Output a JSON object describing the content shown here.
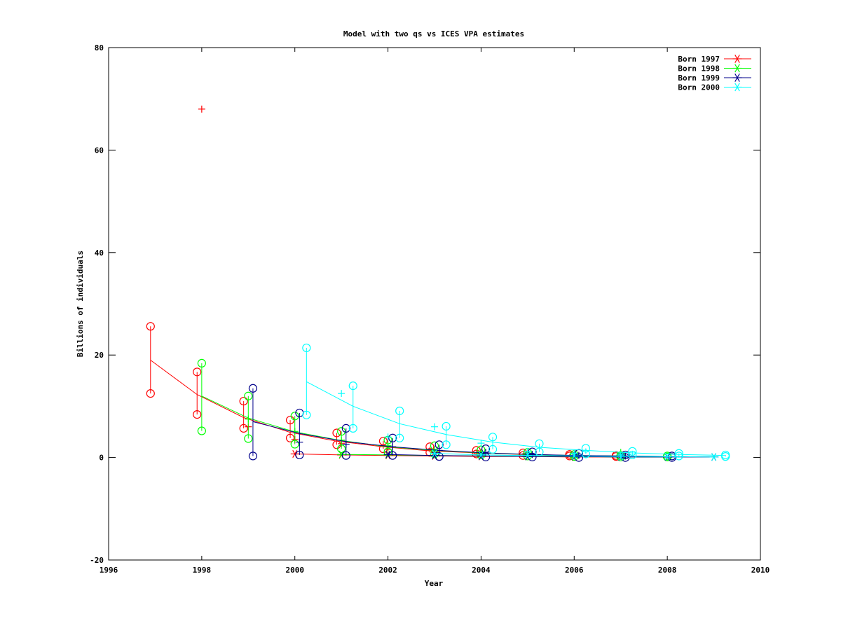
{
  "chart_data": {
    "type": "line",
    "title": "Model with two qs vs ICES VPA estimates",
    "xlabel": "Year",
    "ylabel": "Billions of individuals",
    "xlim": [
      1996,
      2010
    ],
    "ylim": [
      -20,
      80
    ],
    "xticks": [
      1996,
      1998,
      2000,
      2002,
      2004,
      2006,
      2008,
      2010
    ],
    "yticks": [
      -20,
      0,
      20,
      40,
      60,
      80
    ],
    "grid": false,
    "legend_position": "top-right",
    "series": [
      {
        "name": "Born 1997",
        "color": "#ff0000",
        "model_line": [
          [
            1996.9,
            19.0
          ],
          [
            1997.9,
            12.3
          ],
          [
            1998.9,
            7.8
          ],
          [
            1999.9,
            4.9
          ],
          [
            2000.9,
            3.2
          ],
          [
            2001.9,
            2.1
          ],
          [
            2002.9,
            1.3
          ],
          [
            2003.9,
            0.9
          ],
          [
            2004.9,
            0.6
          ],
          [
            2005.9,
            0.4
          ],
          [
            2006.9,
            0.3
          ]
        ],
        "vpa_points": [
          [
            1998.0,
            68.0
          ],
          [
            1999.0,
            6.0
          ],
          [
            2000.0,
            3.5
          ],
          [
            2001.0,
            2.7
          ],
          [
            2002.0,
            1.6
          ],
          [
            2003.0,
            1.0
          ],
          [
            2004.0,
            0.7
          ],
          [
            2005.0,
            0.5
          ],
          [
            2006.0,
            0.3
          ]
        ],
        "interval_bars": [
          [
            1996.9,
            12.5,
            25.6
          ],
          [
            1997.9,
            8.4,
            16.7
          ],
          [
            1998.9,
            5.7,
            11.0
          ],
          [
            1999.9,
            3.8,
            7.3
          ],
          [
            2000.9,
            2.5,
            4.8
          ],
          [
            2001.9,
            1.7,
            3.2
          ],
          [
            2002.9,
            1.0,
            2.1
          ],
          [
            2003.9,
            0.7,
            1.4
          ],
          [
            2004.9,
            0.4,
            0.9
          ],
          [
            2005.9,
            0.3,
            0.6
          ],
          [
            2006.9,
            0.2,
            0.4
          ]
        ],
        "marker_line": [
          [
            2000.0,
            0.7
          ],
          [
            2001.0,
            0.5
          ],
          [
            2002.0,
            0.4
          ],
          [
            2003.0,
            0.3
          ],
          [
            2004.0,
            0.2
          ],
          [
            2005.0,
            0.2
          ],
          [
            2006.0,
            0.1
          ],
          [
            2007.0,
            0.1
          ]
        ]
      },
      {
        "name": "Born 1998",
        "color": "#00ff00",
        "model_line": [
          [
            1998.0,
            12.0
          ],
          [
            1999.0,
            7.7
          ],
          [
            2000.0,
            5.0
          ],
          [
            2001.0,
            3.3
          ],
          [
            2002.0,
            2.1
          ],
          [
            2003.0,
            1.4
          ],
          [
            2004.0,
            0.9
          ],
          [
            2005.0,
            0.6
          ],
          [
            2006.0,
            0.4
          ],
          [
            2007.0,
            0.3
          ],
          [
            2008.0,
            0.2
          ]
        ],
        "vpa_points": [
          [
            1999.0,
            7.5
          ],
          [
            2000.0,
            5.1
          ],
          [
            2001.0,
            3.4
          ],
          [
            2002.0,
            2.3
          ],
          [
            2003.0,
            1.5
          ],
          [
            2004.0,
            1.0
          ],
          [
            2005.0,
            0.6
          ],
          [
            2006.0,
            0.4
          ],
          [
            2007.0,
            1.0
          ]
        ],
        "interval_bars": [
          [
            1998.0,
            5.2,
            18.4
          ],
          [
            1999.0,
            3.7,
            12.0
          ],
          [
            2000.0,
            2.6,
            8.1
          ],
          [
            2001.0,
            1.7,
            5.1
          ],
          [
            2002.0,
            1.1,
            3.4
          ],
          [
            2003.0,
            0.7,
            2.3
          ],
          [
            2004.0,
            0.5,
            1.5
          ],
          [
            2005.0,
            0.3,
            1.0
          ],
          [
            2006.0,
            0.2,
            0.6
          ],
          [
            2007.0,
            0.1,
            0.4
          ],
          [
            2008.0,
            0.1,
            0.3
          ]
        ],
        "marker_line": [
          [
            2001.0,
            0.6
          ],
          [
            2002.0,
            0.5
          ],
          [
            2003.0,
            0.4
          ],
          [
            2004.0,
            0.3
          ],
          [
            2005.0,
            0.2
          ],
          [
            2006.0,
            0.2
          ],
          [
            2007.0,
            0.1
          ],
          [
            2008.0,
            0.1
          ]
        ]
      },
      {
        "name": "Born 1999",
        "color": "#00008b",
        "model_line": [
          [
            1999.1,
            7.0
          ],
          [
            2000.1,
            4.7
          ],
          [
            2001.1,
            3.1
          ],
          [
            2002.1,
            2.1
          ],
          [
            2003.1,
            1.4
          ],
          [
            2004.1,
            0.9
          ],
          [
            2005.1,
            0.6
          ],
          [
            2006.1,
            0.4
          ],
          [
            2007.1,
            0.3
          ],
          [
            2008.1,
            0.2
          ],
          [
            2009.1,
            0.1
          ]
        ],
        "vpa_points": [
          [
            2000.1,
            3.0
          ],
          [
            2001.1,
            2.6
          ],
          [
            2002.1,
            2.1
          ],
          [
            2003.1,
            1.4
          ],
          [
            2004.1,
            0.9
          ],
          [
            2005.1,
            0.6
          ],
          [
            2006.1,
            0.4
          ],
          [
            2007.1,
            0.3
          ]
        ],
        "interval_bars": [
          [
            1999.1,
            0.3,
            13.5
          ],
          [
            2000.1,
            0.5,
            8.7
          ],
          [
            2001.1,
            0.4,
            5.7
          ],
          [
            2002.1,
            0.4,
            3.8
          ],
          [
            2003.1,
            0.2,
            2.5
          ],
          [
            2004.1,
            0.1,
            1.7
          ],
          [
            2005.1,
            0.1,
            1.1
          ],
          [
            2006.1,
            0.0,
            0.8
          ],
          [
            2007.1,
            0.0,
            0.5
          ],
          [
            2008.1,
            0.0,
            0.3
          ]
        ],
        "marker_line": [
          [
            2002.0,
            0.6
          ],
          [
            2003.0,
            0.4
          ],
          [
            2004.0,
            0.3
          ],
          [
            2005.0,
            0.2
          ],
          [
            2006.0,
            0.2
          ],
          [
            2007.0,
            0.1
          ],
          [
            2008.0,
            0.1
          ],
          [
            2009.0,
            0.1
          ]
        ]
      },
      {
        "name": "Born 2000",
        "color": "#00ffff",
        "model_line": [
          [
            2000.25,
            14.8
          ],
          [
            2001.25,
            10.0
          ],
          [
            2002.25,
            6.6
          ],
          [
            2003.25,
            4.5
          ],
          [
            2004.25,
            3.0
          ],
          [
            2005.25,
            2.0
          ],
          [
            2006.25,
            1.4
          ],
          [
            2007.25,
            0.9
          ],
          [
            2008.25,
            0.6
          ],
          [
            2009.25,
            0.4
          ]
        ],
        "vpa_points": [
          [
            2001.0,
            12.5
          ],
          [
            2002.0,
            4.0
          ],
          [
            2003.0,
            6.0
          ],
          [
            2004.0,
            2.8
          ],
          [
            2005.0,
            1.2
          ],
          [
            2006.0,
            0.8
          ],
          [
            2007.0,
            0.5
          ]
        ],
        "interval_bars": [
          [
            2000.25,
            8.3,
            21.4
          ],
          [
            2001.25,
            5.7,
            14.0
          ],
          [
            2002.25,
            3.8,
            9.1
          ],
          [
            2003.25,
            2.5,
            6.1
          ],
          [
            2004.25,
            1.6,
            4.0
          ],
          [
            2005.25,
            1.1,
            2.7
          ],
          [
            2006.25,
            0.7,
            1.8
          ],
          [
            2007.25,
            0.5,
            1.2
          ],
          [
            2008.25,
            0.3,
            0.8
          ],
          [
            2009.25,
            0.2,
            0.5
          ]
        ],
        "marker_line": [
          [
            2003.0,
            0.8
          ],
          [
            2004.0,
            0.5
          ],
          [
            2005.0,
            0.4
          ],
          [
            2006.0,
            0.3
          ],
          [
            2007.0,
            0.2
          ],
          [
            2008.0,
            0.2
          ],
          [
            2009.0,
            0.1
          ]
        ]
      }
    ]
  }
}
